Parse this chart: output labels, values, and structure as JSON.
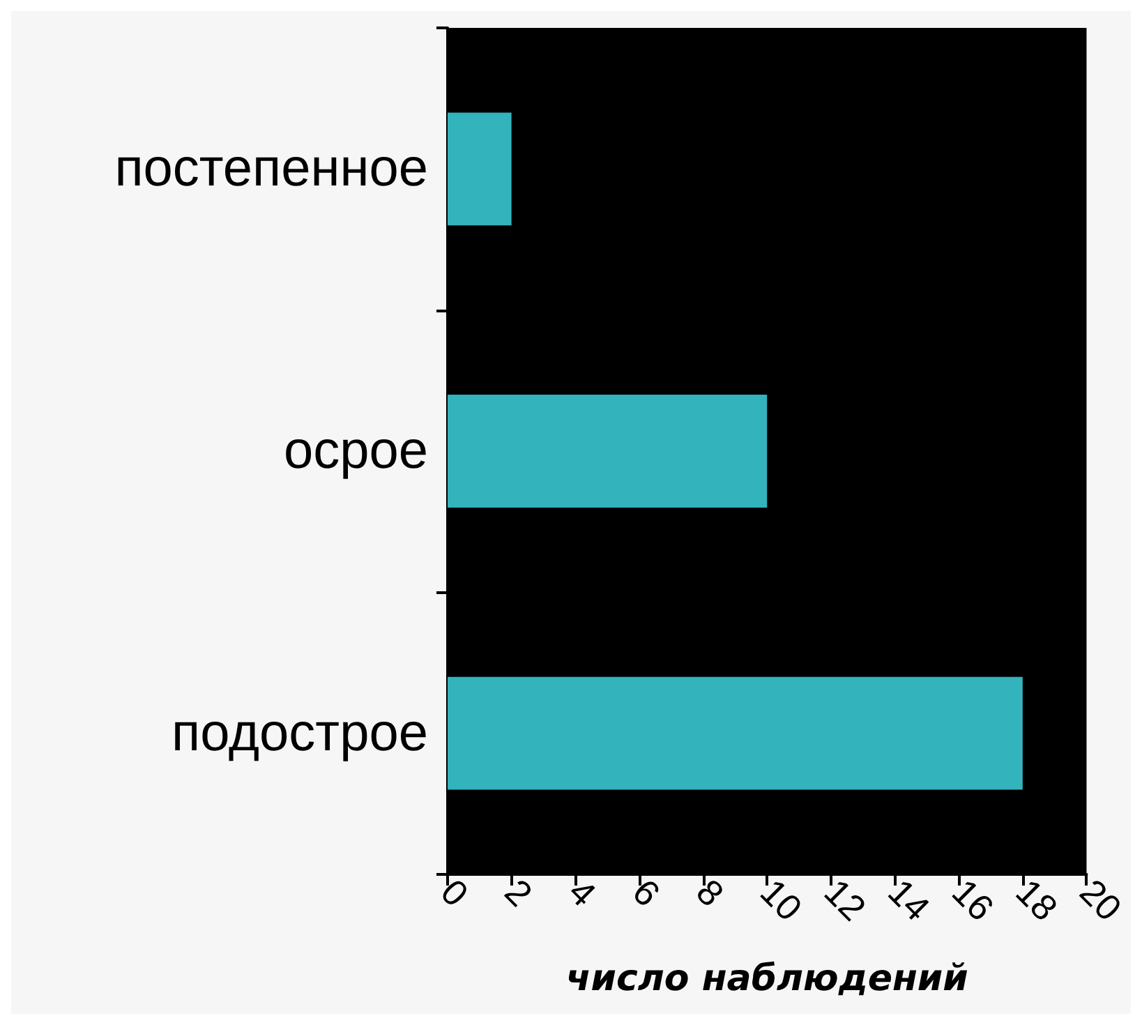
{
  "chart_data": {
    "type": "bar",
    "orientation": "horizontal",
    "categories": [
      "постепенное",
      "осрое",
      "подострое"
    ],
    "values": [
      2,
      10,
      18
    ],
    "color": "#33b3bc",
    "xlim": [
      0,
      20
    ],
    "xticks": [
      0,
      2,
      4,
      6,
      8,
      10,
      12,
      14,
      16,
      18,
      20
    ],
    "xlabel": "число наблюдений",
    "grid": false
  }
}
